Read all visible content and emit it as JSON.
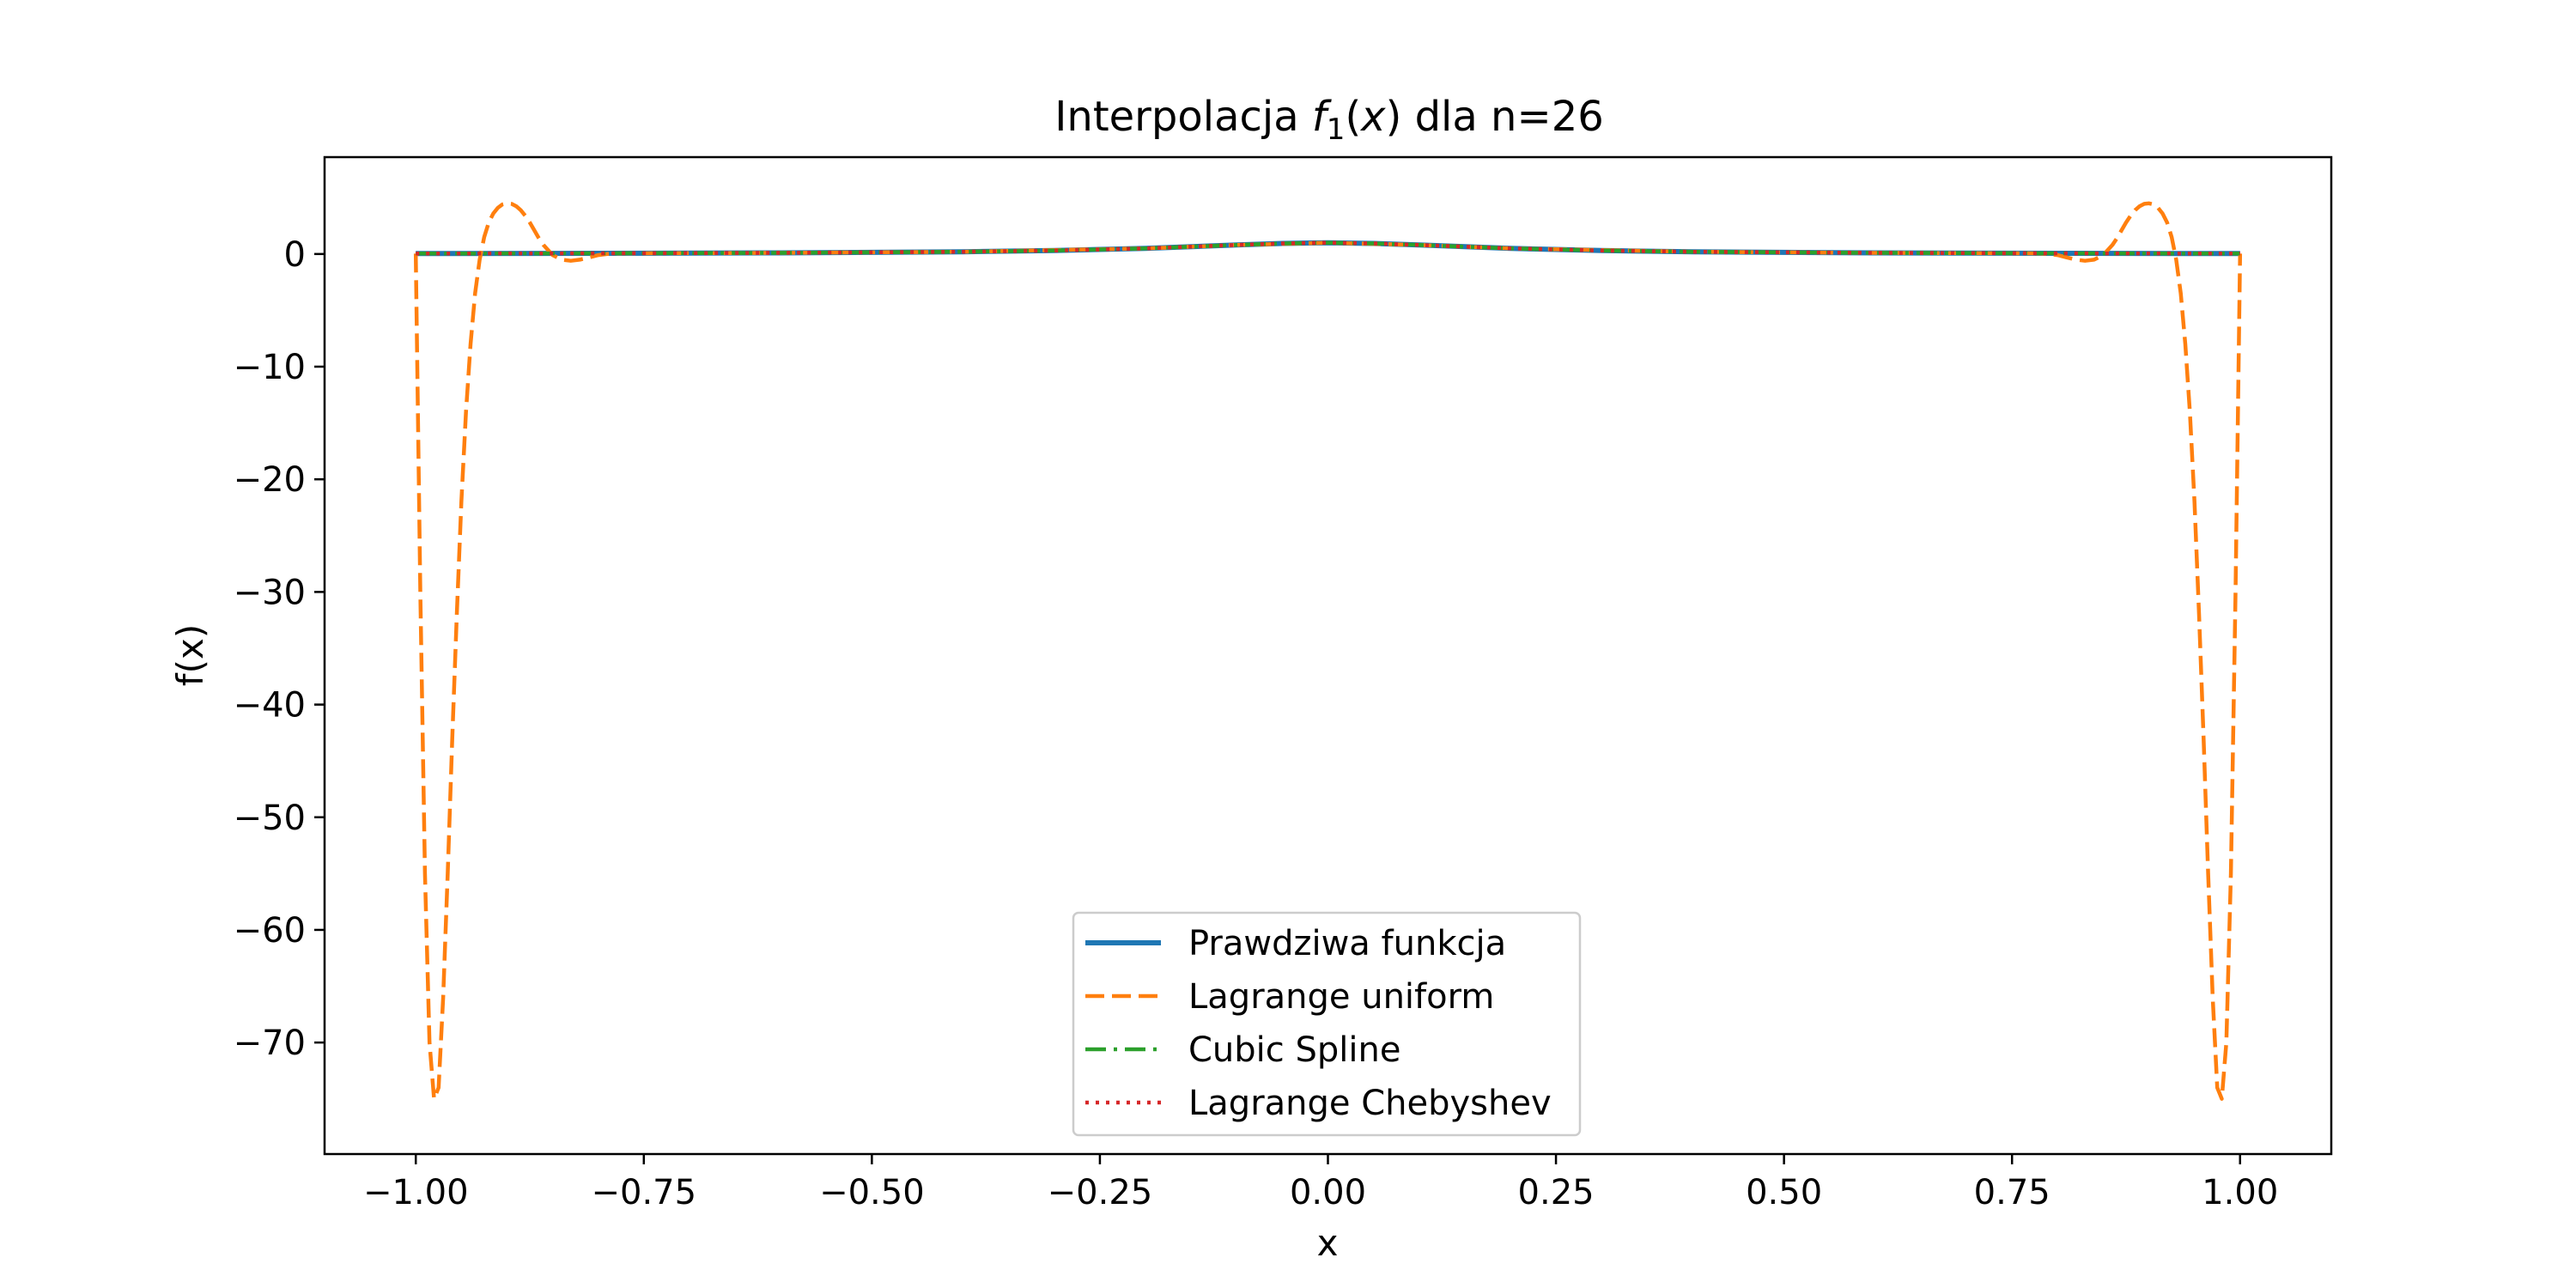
{
  "chart_data": {
    "type": "line",
    "title": "Interpolacja",
    "title_func": "f",
    "title_sub": "1",
    "title_open": "(",
    "title_var": "x",
    "title_close": ")",
    "title_rest": " dla n=26",
    "xlabel": "x",
    "ylabel": "f(x)",
    "xlim": [
      -1.1,
      1.1
    ],
    "ylim": [
      -79.9,
      8.6
    ],
    "xticks": [
      -1.0,
      -0.75,
      -0.5,
      -0.25,
      0.0,
      0.25,
      0.5,
      0.75,
      1.0
    ],
    "xtick_labels": [
      "−1.00",
      "−0.75",
      "−0.50",
      "−0.25",
      "0.00",
      "0.25",
      "0.50",
      "0.75",
      "1.00"
    ],
    "yticks": [
      0,
      -10,
      -20,
      -30,
      -40,
      -50,
      -60,
      -70
    ],
    "ytick_labels": [
      "0",
      "−10",
      "−20",
      "−30",
      "−40",
      "−50",
      "−60",
      "−70"
    ],
    "grid": false,
    "legend_position": "lower-center",
    "series": [
      {
        "name": "Prawdziwa funkcja",
        "color": "#1f77b4",
        "style": "solid",
        "x": [
          -1.0,
          -0.8,
          -0.6,
          -0.4,
          -0.3,
          -0.2,
          -0.1,
          -0.05,
          0.0,
          0.05,
          0.1,
          0.2,
          0.3,
          0.4,
          0.6,
          0.8,
          1.0
        ],
        "y": [
          0.04,
          0.06,
          0.1,
          0.2,
          0.31,
          0.5,
          0.8,
          0.94,
          1.0,
          0.94,
          0.8,
          0.5,
          0.31,
          0.2,
          0.1,
          0.06,
          0.04
        ]
      },
      {
        "name": "Lagrange uniform",
        "color": "#ff7f0e",
        "style": "dashed",
        "x": [
          -1.0,
          -0.995,
          -0.99,
          -0.985,
          -0.98,
          -0.975,
          -0.97,
          -0.965,
          -0.96,
          -0.955,
          -0.95,
          -0.945,
          -0.94,
          -0.935,
          -0.93,
          -0.925,
          -0.92,
          -0.915,
          -0.91,
          -0.905,
          -0.9,
          -0.895,
          -0.89,
          -0.885,
          -0.88,
          -0.875,
          -0.87,
          -0.865,
          -0.86,
          -0.85,
          -0.84,
          -0.83,
          -0.82,
          -0.81,
          -0.8,
          -0.79,
          -0.78,
          -0.77,
          -0.76,
          -0.74,
          -0.7,
          -0.6,
          -0.4,
          -0.2,
          -0.1,
          0.0,
          0.1,
          0.2,
          0.4,
          0.6,
          0.7,
          0.74,
          0.76,
          0.77,
          0.78,
          0.79,
          0.8,
          0.81,
          0.82,
          0.83,
          0.84,
          0.85,
          0.86,
          0.865,
          0.87,
          0.875,
          0.88,
          0.885,
          0.89,
          0.895,
          0.9,
          0.905,
          0.91,
          0.915,
          0.92,
          0.925,
          0.93,
          0.935,
          0.94,
          0.945,
          0.95,
          0.955,
          0.96,
          0.965,
          0.97,
          0.975,
          0.98,
          0.985,
          0.99,
          0.995,
          1.0
        ],
        "y": [
          0.04,
          -30.0,
          -55.0,
          -70.0,
          -75.0,
          -74.0,
          -66.0,
          -55.0,
          -43.0,
          -32.0,
          -22.0,
          -14.0,
          -8.0,
          -3.5,
          -0.5,
          1.5,
          2.8,
          3.6,
          4.1,
          4.4,
          4.5,
          4.45,
          4.25,
          3.9,
          3.4,
          2.8,
          2.1,
          1.4,
          0.8,
          -0.1,
          -0.5,
          -0.6,
          -0.5,
          -0.3,
          -0.1,
          0.0,
          0.05,
          0.06,
          0.06,
          0.07,
          0.08,
          0.1,
          0.2,
          0.5,
          0.8,
          1.0,
          0.8,
          0.5,
          0.2,
          0.1,
          0.08,
          0.07,
          0.06,
          0.06,
          0.05,
          0.0,
          -0.1,
          -0.3,
          -0.5,
          -0.6,
          -0.5,
          -0.1,
          0.8,
          1.4,
          2.1,
          2.8,
          3.4,
          3.9,
          4.25,
          4.45,
          4.5,
          4.4,
          4.1,
          3.6,
          2.8,
          1.5,
          -0.5,
          -3.5,
          -8.0,
          -14.0,
          -22.0,
          -32.0,
          -43.0,
          -55.0,
          -66.0,
          -74.0,
          -75.0,
          -70.0,
          -55.0,
          -30.0,
          0.04
        ]
      },
      {
        "name": "Cubic Spline",
        "color": "#2ca02c",
        "style": "dashdot",
        "x": [
          -1.0,
          -0.8,
          -0.6,
          -0.4,
          -0.3,
          -0.2,
          -0.1,
          -0.05,
          0.0,
          0.05,
          0.1,
          0.2,
          0.3,
          0.4,
          0.6,
          0.8,
          1.0
        ],
        "y": [
          0.04,
          0.06,
          0.1,
          0.2,
          0.31,
          0.5,
          0.8,
          0.94,
          1.0,
          0.94,
          0.8,
          0.5,
          0.31,
          0.2,
          0.1,
          0.06,
          0.04
        ]
      },
      {
        "name": "Lagrange Chebyshev",
        "color": "#d62728",
        "style": "dotted",
        "x": [
          -1.0,
          -0.8,
          -0.6,
          -0.4,
          -0.3,
          -0.2,
          -0.1,
          -0.05,
          0.0,
          0.05,
          0.1,
          0.2,
          0.3,
          0.4,
          0.6,
          0.8,
          1.0
        ],
        "y": [
          0.04,
          0.06,
          0.1,
          0.2,
          0.31,
          0.5,
          0.8,
          0.94,
          1.0,
          0.94,
          0.8,
          0.5,
          0.31,
          0.2,
          0.1,
          0.06,
          0.04
        ]
      }
    ]
  }
}
